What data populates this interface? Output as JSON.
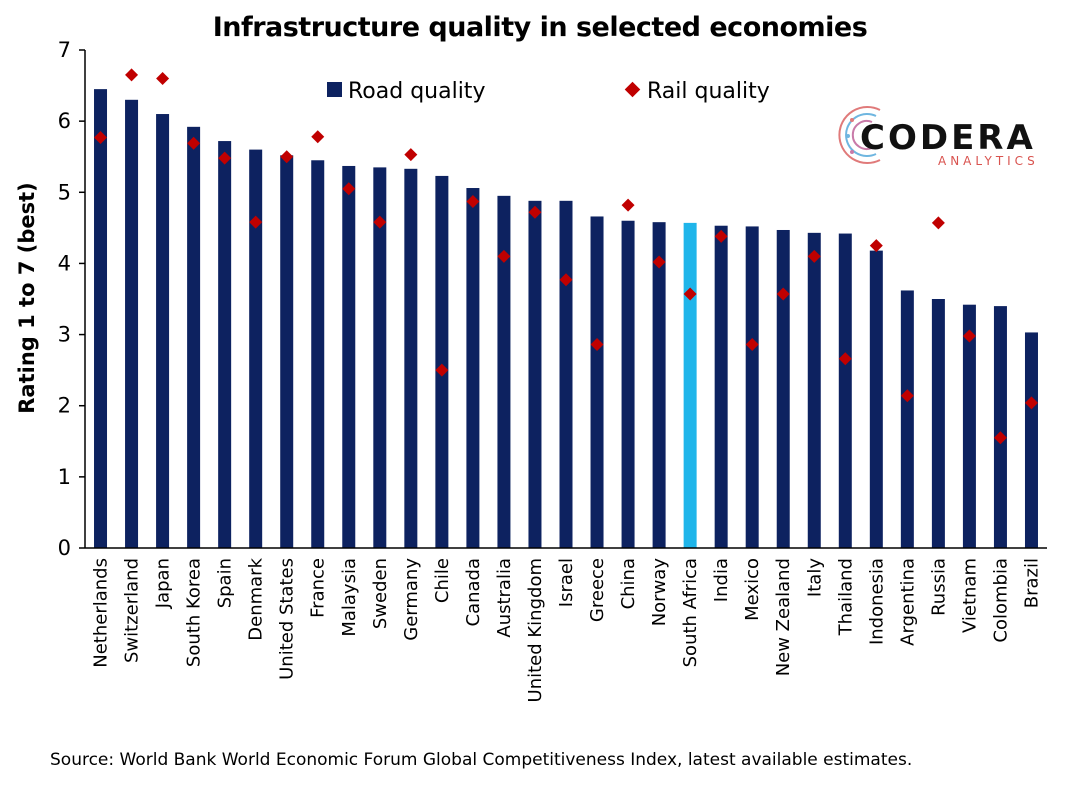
{
  "title": "Infrastructure quality in selected economies",
  "source": "Source: World Bank World Economic Forum Global Competitiveness Index, latest available estimates.",
  "logo": {
    "name": "CODERA",
    "sub": "ANALYTICS"
  },
  "colors": {
    "road": "#0d2260",
    "highlight": "#1fb5ea",
    "rail": "#c00000",
    "axis": "#000000"
  },
  "chart_data": {
    "type": "bar",
    "title": "Infrastructure quality in selected economies",
    "xlabel": "",
    "ylabel": "Rating 1 to 7 (best)",
    "ylim": [
      0,
      7
    ],
    "yticks": [
      "0",
      "1",
      "2",
      "3",
      "4",
      "5",
      "6",
      "7"
    ],
    "grid": false,
    "legend_position": "top-center",
    "highlight_category": "South Africa",
    "categories": [
      "Netherlands",
      "Switzerland",
      "Japan",
      "South Korea",
      "Spain",
      "Denmark",
      "United States",
      "France",
      "Malaysia",
      "Sweden",
      "Germany",
      "Chile",
      "Canada",
      "Australia",
      "United Kingdom",
      "Israel",
      "Greece",
      "China",
      "Norway",
      "South Africa",
      "India",
      "Mexico",
      "New Zealand",
      "Italy",
      "Thailand",
      "Indonesia",
      "Argentina",
      "Russia",
      "Vietnam",
      "Colombia",
      "Brazil"
    ],
    "series": [
      {
        "name": "Road quality",
        "type": "bar",
        "values": [
          6.45,
          6.3,
          6.1,
          5.92,
          5.72,
          5.6,
          5.52,
          5.45,
          5.37,
          5.35,
          5.33,
          5.23,
          5.06,
          4.95,
          4.88,
          4.88,
          4.66,
          4.6,
          4.58,
          4.57,
          4.53,
          4.52,
          4.47,
          4.43,
          4.42,
          4.18,
          3.62,
          3.5,
          3.42,
          3.4,
          3.03
        ]
      },
      {
        "name": "Rail quality",
        "type": "scatter",
        "values": [
          5.77,
          6.65,
          6.6,
          5.69,
          5.48,
          4.58,
          5.5,
          5.78,
          5.05,
          4.58,
          5.53,
          2.5,
          4.87,
          4.1,
          4.72,
          3.77,
          2.86,
          4.82,
          4.02,
          3.57,
          4.38,
          2.86,
          3.57,
          4.1,
          2.66,
          4.25,
          2.14,
          4.57,
          2.98,
          1.55,
          2.04
        ]
      }
    ]
  }
}
